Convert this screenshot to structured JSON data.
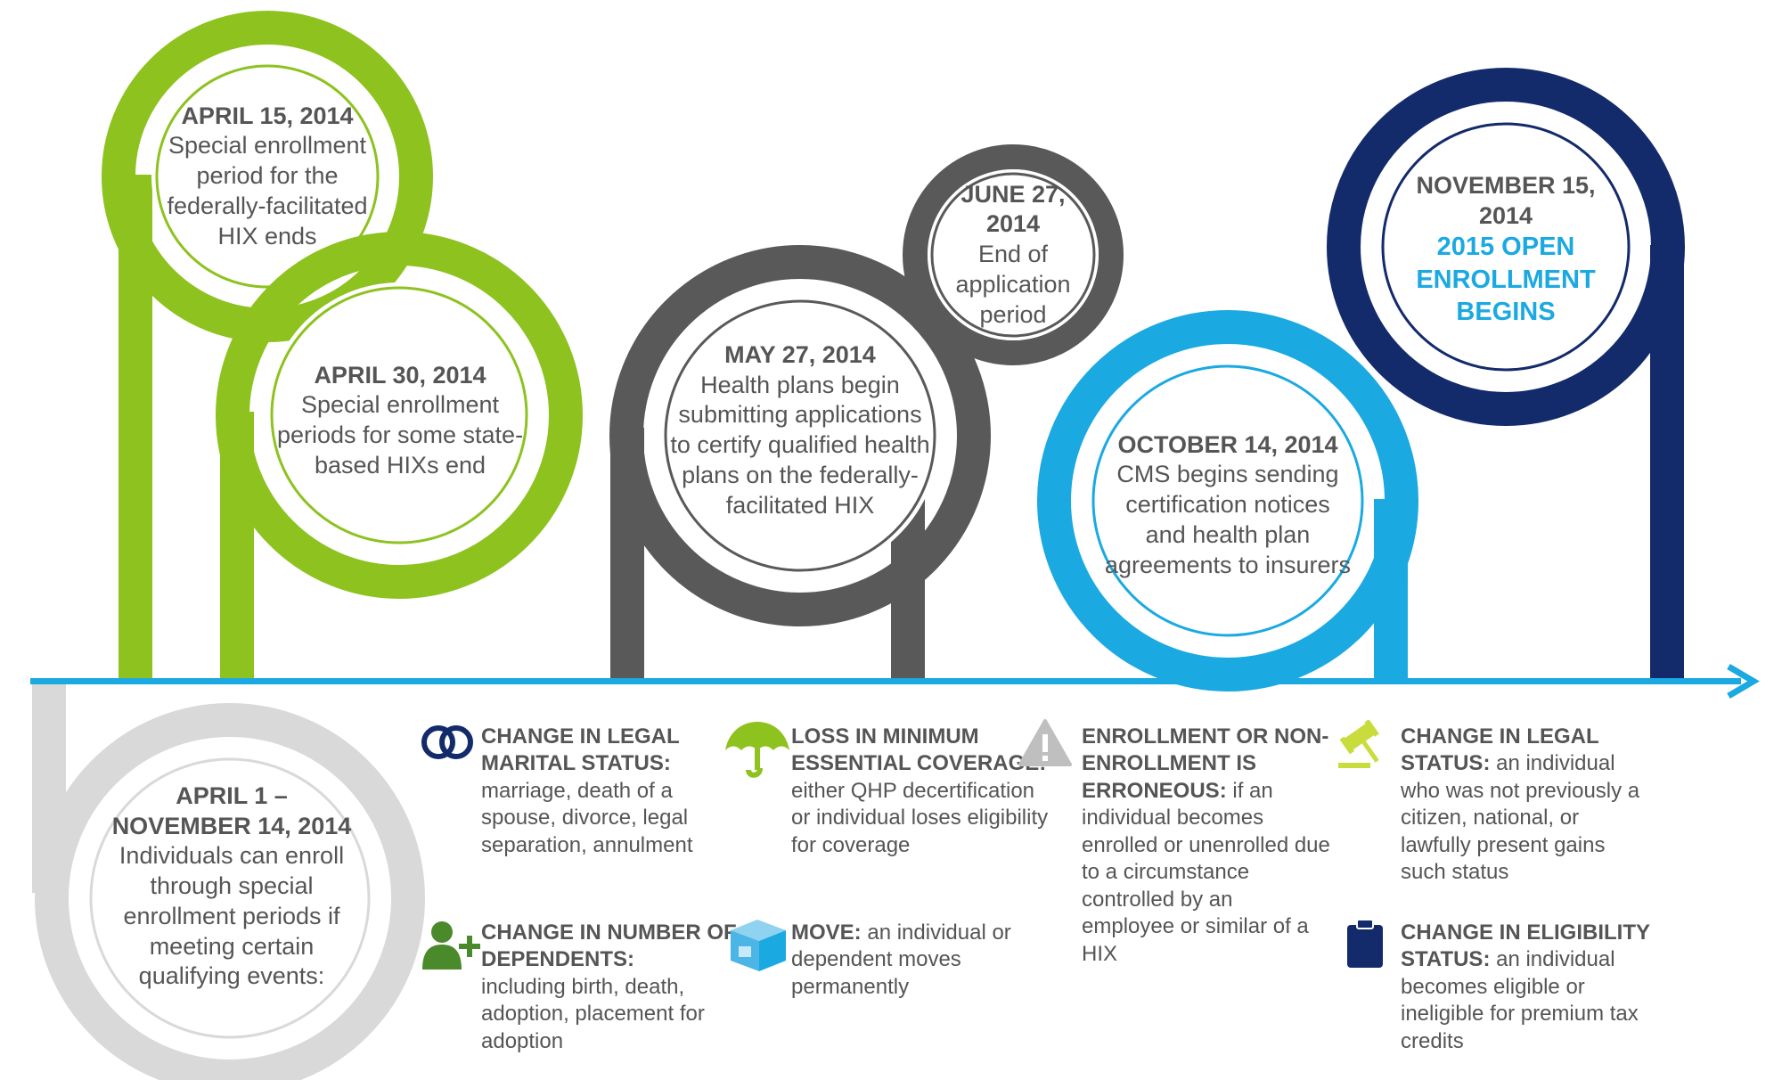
{
  "colors": {
    "green": "#8dc21f",
    "gray": "#595959",
    "light_blue": "#1ba9e1",
    "navy": "#132a6b",
    "light_gray": "#d9d9d9",
    "text": "#555555",
    "icon_gray": "#bfbfbf"
  },
  "milestones": [
    {
      "id": "apr15",
      "date": "APRIL 15, 2014",
      "text": "Special enrollment period for the federally-facilitated HIX ends",
      "color": "green"
    },
    {
      "id": "apr30",
      "date": "APRIL 30, 2014",
      "text": "Special enrollment periods for some state-based HIXs end",
      "color": "green"
    },
    {
      "id": "may27",
      "date": "MAY 27, 2014",
      "text": "Health plans begin submitting applications to certify qualified health plans on the federally-facilitated HIX",
      "color": "gray"
    },
    {
      "id": "jun27",
      "date": "JUNE 27, 2014",
      "text": "End of application period",
      "color": "gray"
    },
    {
      "id": "oct14",
      "date": "OCTOBER 14, 2014",
      "text": "CMS begins sending certification notices and health plan agreements to insurers",
      "color": "light_blue"
    },
    {
      "id": "nov15",
      "date": "NOVEMBER 15, 2014",
      "text": "2015 OPEN ENROLLMENT BEGINS",
      "color": "navy"
    }
  ],
  "period": {
    "date": "APRIL 1 – NOVEMBER 14, 2014",
    "text": "Individuals can enroll through special enrollment periods if meeting certain qualifying events:"
  },
  "events": [
    {
      "icon": "rings-icon",
      "title": "CHANGE IN LEGAL MARITAL STATUS:",
      "text": "marriage, death of a spouse, divorce, legal separation, annulment"
    },
    {
      "icon": "add-user-icon",
      "title": "CHANGE IN NUMBER OF DEPENDENTS:",
      "text": "including birth, death, adoption, placement for adoption"
    },
    {
      "icon": "umbrella-icon",
      "title": "LOSS IN MINIMUM ESSENTIAL COVERAGE:",
      "text": "either QHP decertification or individual loses eligibility for coverage"
    },
    {
      "icon": "moving-box-icon",
      "title": "MOVE:",
      "text": "an individual or dependent moves permanently"
    },
    {
      "icon": "warning-icon",
      "title": "ENROLLMENT OR NON-ENROLLMENT IS ERRONEOUS:",
      "text": "if an individual becomes enrolled or unenrolled due to a circumstance controlled by an employee or similar of a HIX"
    },
    {
      "icon": "gavel-icon",
      "title": "CHANGE IN LEGAL STATUS:",
      "text": "an individual who was not previously a citizen, national, or lawfully present gains such status"
    },
    {
      "icon": "clipboard-icon",
      "title": "CHANGE IN ELIGIBILITY STATUS:",
      "text": "an individual becomes eligible or ineligible for premium tax credits"
    }
  ]
}
